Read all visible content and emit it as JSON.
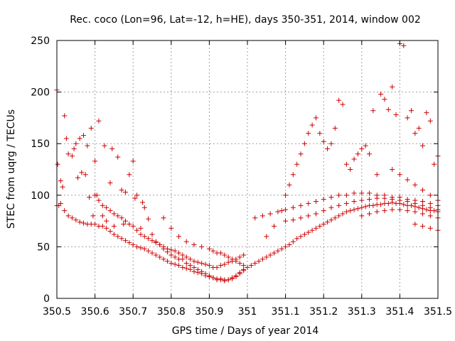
{
  "chart_data": {
    "type": "scatter",
    "title": "Rec. coco (Lon=96, Lat=-12, h=HE), days 350-351, 2014, window 002",
    "xlabel": "GPS time / Days of year 2014",
    "ylabel": "STEC from uqrg / TECUs",
    "xlim": [
      350.5,
      351.5
    ],
    "ylim": [
      0,
      250
    ],
    "xticks": [
      350.5,
      350.6,
      350.7,
      350.8,
      350.9,
      351,
      351.1,
      351.2,
      351.3,
      351.4,
      351.5
    ],
    "xtick_labels": [
      "350.5",
      "350.6",
      "350.7",
      "350.8",
      "350.9",
      "351",
      "351.1",
      "351.2",
      "351.3",
      "351.4",
      "351.5"
    ],
    "yticks": [
      0,
      50,
      100,
      150,
      200,
      250
    ],
    "ytick_labels": [
      "0",
      "50",
      "100",
      "150",
      "200",
      "250"
    ],
    "grid": true,
    "marker": "plus",
    "color": "#cc0000",
    "series": [
      {
        "x": [
          350.5,
          350.502,
          350.505,
          350.51,
          350.515,
          350.52,
          350.525,
          350.53,
          350.54,
          350.545,
          350.55,
          350.555,
          350.56,
          350.565,
          350.57,
          350.575,
          350.58,
          350.585,
          350.59,
          350.595,
          350.6,
          350.605,
          350.61,
          350.62,
          350.625,
          350.63,
          350.64,
          350.645,
          350.65,
          350.66,
          350.67,
          350.675,
          350.68,
          350.69,
          350.7,
          350.705,
          350.71,
          350.72,
          350.725,
          350.73,
          350.74,
          350.75,
          350.76,
          350.77,
          350.78,
          350.79,
          350.8,
          350.81,
          350.82,
          350.83,
          350.84,
          350.85,
          350.86,
          350.87,
          350.88,
          350.89,
          350.9,
          350.91,
          350.92,
          350.93,
          350.94,
          350.95,
          350.96,
          350.97,
          350.98,
          350.99
        ],
        "y": [
          202,
          130,
          90,
          114,
          108,
          177,
          155,
          140,
          138,
          145,
          150,
          117,
          155,
          122,
          158,
          120,
          148,
          98,
          165,
          80,
          133,
          100,
          172,
          80,
          148,
          75,
          112,
          145,
          70,
          137,
          105,
          72,
          103,
          120,
          133,
          97,
          100,
          68,
          93,
          88,
          77,
          62,
          55,
          52,
          48,
          45,
          42,
          40,
          38,
          38,
          34,
          32,
          30,
          28,
          26,
          24,
          22,
          20,
          18,
          18,
          17,
          18,
          20,
          22,
          25,
          28
        ]
      },
      {
        "x": [
          350.5,
          350.51,
          350.52,
          350.53,
          350.54,
          350.55,
          350.56,
          350.57,
          350.58,
          350.59,
          350.6,
          350.61,
          350.62,
          350.63,
          350.64,
          350.65,
          350.66,
          350.67,
          350.68,
          350.69,
          350.7,
          350.71,
          350.72,
          350.73,
          350.74,
          350.75,
          350.76,
          350.77,
          350.78,
          350.79,
          350.8,
          350.81,
          350.82,
          350.83,
          350.84,
          350.85,
          350.86,
          350.87,
          350.88,
          350.89,
          350.9,
          350.91,
          350.92,
          350.93,
          350.94,
          350.95,
          350.96,
          350.97,
          350.98,
          350.99
        ],
        "y": [
          90,
          92,
          85,
          80,
          78,
          76,
          74,
          73,
          72,
          72,
          72,
          70,
          70,
          68,
          65,
          62,
          60,
          58,
          56,
          54,
          52,
          50,
          49,
          48,
          46,
          44,
          42,
          40,
          38,
          36,
          34,
          33,
          32,
          30,
          29,
          28,
          26,
          25,
          24,
          22,
          21,
          20,
          19,
          19,
          18,
          18,
          19,
          21,
          24,
          27
        ]
      },
      {
        "x": [
          350.6,
          350.61,
          350.62,
          350.63,
          350.64,
          350.65,
          350.66,
          350.67,
          350.68,
          350.69,
          350.7,
          350.71,
          350.72,
          350.73,
          350.74,
          350.75,
          350.76,
          350.77,
          350.78,
          350.79,
          350.8,
          350.81,
          350.82,
          350.83,
          350.84,
          350.85,
          350.86,
          350.87,
          350.88,
          350.89,
          350.9,
          350.91,
          350.92,
          350.93,
          350.94,
          350.95,
          350.96,
          350.97,
          350.98,
          350.99
        ],
        "y": [
          100,
          95,
          90,
          88,
          85,
          82,
          80,
          78,
          75,
          72,
          70,
          66,
          62,
          60,
          58,
          56,
          54,
          52,
          50,
          48,
          47,
          46,
          44,
          42,
          40,
          38,
          36,
          35,
          34,
          33,
          32,
          30,
          30,
          32,
          33,
          35,
          36,
          38,
          40,
          42
        ]
      },
      {
        "x": [
          350.78,
          350.8,
          350.82,
          350.84,
          350.86,
          350.88,
          350.9,
          350.91,
          350.92,
          350.93,
          350.94,
          350.95,
          350.96,
          350.97,
          350.98,
          350.99,
          351
        ],
        "y": [
          78,
          68,
          60,
          55,
          52,
          50,
          48,
          46,
          44,
          44,
          42,
          40,
          38,
          36,
          34,
          32,
          30
        ]
      },
      {
        "x": [
          351,
          351.01,
          351.02,
          351.03,
          351.04,
          351.05,
          351.06,
          351.07,
          351.08,
          351.09,
          351.1,
          351.11,
          351.12,
          351.13,
          351.14,
          351.15,
          351.16,
          351.17,
          351.18,
          351.19,
          351.2,
          351.21,
          351.22,
          351.23,
          351.24,
          351.25,
          351.26,
          351.27,
          351.28,
          351.29,
          351.3,
          351.31,
          351.32,
          351.33,
          351.34,
          351.35,
          351.36,
          351.37,
          351.38,
          351.39,
          351.4,
          351.41,
          351.42,
          351.43,
          351.44,
          351.45,
          351.46,
          351.47,
          351.48,
          351.49,
          351.5
        ],
        "y": [
          30,
          32,
          34,
          36,
          38,
          40,
          42,
          44,
          46,
          48,
          50,
          52,
          55,
          58,
          60,
          62,
          64,
          66,
          68,
          70,
          72,
          74,
          76,
          78,
          80,
          82,
          84,
          85,
          86,
          87,
          88,
          89,
          90,
          90,
          91,
          91,
          92,
          92,
          93,
          92,
          92,
          91,
          90,
          90,
          89,
          88,
          87,
          86,
          85,
          85,
          84
        ]
      },
      {
        "x": [
          351.02,
          351.04,
          351.06,
          351.08,
          351.1,
          351.12,
          351.14,
          351.16,
          351.18,
          351.2,
          351.22,
          351.24,
          351.26,
          351.28,
          351.3,
          351.32,
          351.34,
          351.36,
          351.38,
          351.4,
          351.42,
          351.44,
          351.46,
          351.48,
          351.5
        ],
        "y": [
          78,
          80,
          82,
          84,
          86,
          88,
          90,
          92,
          94,
          96,
          98,
          100,
          100,
          102,
          102,
          102,
          100,
          100,
          98,
          98,
          96,
          95,
          94,
          92,
          90
        ]
      },
      {
        "x": [
          351.05,
          351.07,
          351.09,
          351.1,
          351.11,
          351.12,
          351.13,
          351.14,
          351.15,
          351.16,
          351.17,
          351.18,
          351.19,
          351.2,
          351.21,
          351.22,
          351.23,
          351.24,
          351.25,
          351.26,
          351.27,
          351.28,
          351.29,
          351.3,
          351.31,
          351.32,
          351.33,
          351.34,
          351.35,
          351.36,
          351.37,
          351.38,
          351.39,
          351.4,
          351.41,
          351.42,
          351.43,
          351.44,
          351.45,
          351.46,
          351.47,
          351.48,
          351.49,
          351.5
        ],
        "y": [
          60,
          70,
          85,
          100,
          110,
          120,
          130,
          140,
          150,
          160,
          168,
          175,
          160,
          152,
          145,
          150,
          165,
          192,
          188,
          130,
          125,
          135,
          140,
          145,
          148,
          140,
          182,
          120,
          198,
          193,
          183,
          205,
          178,
          247,
          245,
          175,
          182,
          160,
          165,
          148,
          180,
          172,
          130,
          138
        ]
      },
      {
        "x": [
          351.1,
          351.12,
          351.14,
          351.16,
          351.18,
          351.2,
          351.22,
          351.24,
          351.26,
          351.28,
          351.3,
          351.32,
          351.34,
          351.36,
          351.38,
          351.4,
          351.42,
          351.44,
          351.46,
          351.48,
          351.5
        ],
        "y": [
          75,
          76,
          78,
          80,
          82,
          85,
          88,
          90,
          92,
          94,
          95,
          96,
          97,
          97,
          96,
          95,
          94,
          92,
          90,
          88,
          86
        ]
      },
      {
        "x": [
          351.3,
          351.32,
          351.34,
          351.36,
          351.38,
          351.4,
          351.42,
          351.44,
          351.46,
          351.48,
          351.5
        ],
        "y": [
          80,
          82,
          84,
          85,
          86,
          86,
          85,
          84,
          82,
          80,
          78
        ]
      },
      {
        "x": [
          351.38,
          351.4,
          351.42,
          351.44,
          351.46,
          351.48,
          351.5
        ],
        "y": [
          125,
          120,
          115,
          110,
          105,
          100,
          95
        ]
      },
      {
        "x": [
          351.44,
          351.46,
          351.48,
          351.5
        ],
        "y": [
          72,
          70,
          68,
          66
        ]
      }
    ]
  }
}
